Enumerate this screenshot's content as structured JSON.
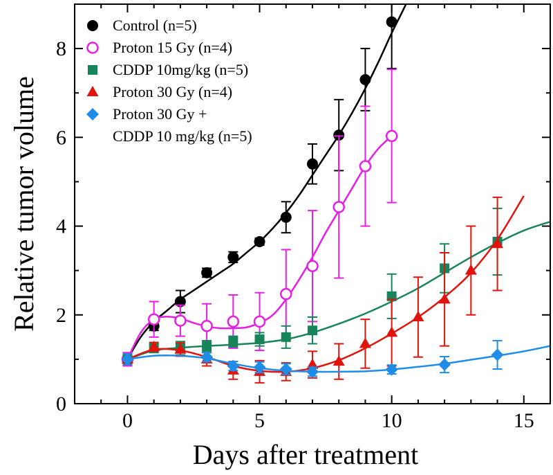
{
  "chart_data": {
    "type": "scatter",
    "title": "",
    "xlabel": "Days after treatment",
    "ylabel": "Relative tumor volume",
    "xlim": [
      -2,
      16
    ],
    "ylim": [
      0,
      9
    ],
    "xticks": [
      0,
      5,
      10,
      15
    ],
    "yticks": [
      0,
      2,
      4,
      6,
      8
    ],
    "grid": false,
    "legend_position": "top-left",
    "series": [
      {
        "name": "Control (n=5)",
        "name_lines": [
          "Control (n=5)"
        ],
        "color": "#000000",
        "marker": "circle-filled",
        "x": [
          0,
          1,
          2,
          3,
          4,
          5,
          6,
          7,
          8,
          9,
          10
        ],
        "y": [
          1.0,
          1.75,
          2.3,
          2.95,
          3.3,
          3.65,
          4.2,
          5.4,
          6.05,
          7.3,
          8.6
        ],
        "err": [
          0.05,
          0.1,
          0.25,
          0.1,
          0.12,
          0.08,
          0.35,
          0.45,
          0.8,
          0.7,
          1.05
        ],
        "fit_x": [
          0,
          0.5,
          1,
          1.5,
          2,
          2.5,
          3,
          3.5,
          4,
          4.5,
          5,
          5.5,
          6,
          6.5,
          7,
          7.5,
          8,
          8.5,
          9,
          9.5,
          10,
          10.5,
          11,
          11.5
        ],
        "fit_y": [
          1.0,
          1.5,
          1.85,
          2.1,
          2.35,
          2.55,
          2.75,
          2.95,
          3.15,
          3.4,
          3.65,
          3.95,
          4.3,
          4.7,
          5.15,
          5.6,
          6.05,
          6.55,
          7.1,
          7.7,
          8.35,
          8.95,
          9.6,
          10.2
        ]
      },
      {
        "name": "Proton 15 Gy (n=4)",
        "name_lines": [
          "Proton 15 Gy (n=4)"
        ],
        "color": "#e61ee6",
        "marker": "circle-open",
        "x": [
          0,
          1,
          2,
          3,
          4,
          5,
          6,
          7,
          8,
          9,
          10
        ],
        "y": [
          1.0,
          1.9,
          1.87,
          1.75,
          1.85,
          1.85,
          2.47,
          3.1,
          4.43,
          5.35,
          6.03
        ],
        "err": [
          0.15,
          0.4,
          0.35,
          0.5,
          0.6,
          0.65,
          1.0,
          1.25,
          1.6,
          1.35,
          1.5
        ],
        "fit_x": [
          0,
          0.5,
          1,
          1.5,
          2,
          2.5,
          3,
          3.5,
          4,
          4.5,
          5,
          5.5,
          6,
          6.5,
          7,
          7.5,
          8,
          8.5,
          9,
          9.5,
          10
        ],
        "fit_y": [
          1.0,
          1.6,
          1.9,
          1.96,
          1.92,
          1.82,
          1.74,
          1.7,
          1.7,
          1.72,
          1.82,
          2.0,
          2.35,
          2.8,
          3.3,
          3.85,
          4.35,
          4.85,
          5.35,
          5.75,
          6.03
        ]
      },
      {
        "name": "CDDP 10mg/kg (n=5)",
        "name_lines": [
          "CDDP 10mg/kg (n=5)"
        ],
        "color": "#17845a",
        "marker": "square-filled",
        "x": [
          0,
          1,
          2,
          3,
          4,
          5,
          6,
          7,
          10,
          12,
          14
        ],
        "y": [
          1.0,
          1.25,
          1.25,
          1.3,
          1.4,
          1.45,
          1.5,
          1.65,
          2.42,
          3.05,
          3.65
        ],
        "err": [
          0.1,
          0.1,
          0.15,
          0.12,
          0.12,
          0.15,
          0.25,
          0.3,
          0.5,
          0.55,
          0.75
        ],
        "fit_x": [
          0,
          1,
          2,
          3,
          4,
          5,
          6,
          7,
          8,
          9,
          10,
          11,
          12,
          13,
          14,
          15,
          16
        ],
        "fit_y": [
          1.0,
          1.2,
          1.26,
          1.3,
          1.33,
          1.37,
          1.45,
          1.6,
          1.8,
          2.03,
          2.3,
          2.6,
          2.95,
          3.3,
          3.62,
          3.9,
          4.1
        ]
      },
      {
        "name": "Proton 30 Gy (n=4)",
        "name_lines": [
          "Proton 30 Gy (n=4)"
        ],
        "color": "#e0140c",
        "marker": "triangle-filled",
        "x": [
          0,
          1,
          2,
          3,
          4,
          5,
          6,
          7,
          8,
          9,
          10,
          11,
          12,
          13,
          14
        ],
        "y": [
          1.0,
          1.28,
          1.22,
          1.0,
          0.75,
          0.72,
          0.72,
          0.88,
          0.95,
          1.35,
          1.6,
          1.95,
          2.35,
          3.0,
          3.6
        ],
        "err": [
          0.12,
          0.1,
          0.15,
          0.15,
          0.2,
          0.25,
          0.2,
          0.3,
          0.4,
          0.55,
          0.75,
          0.9,
          1.05,
          1.0,
          1.05
        ],
        "fit_x": [
          0,
          1,
          2,
          3,
          4,
          5,
          6,
          7,
          8,
          9,
          10,
          11,
          12,
          13,
          14,
          15
        ],
        "fit_y": [
          1.0,
          1.22,
          1.2,
          1.05,
          0.85,
          0.74,
          0.72,
          0.8,
          0.98,
          1.25,
          1.58,
          1.95,
          2.4,
          2.95,
          3.7,
          4.68
        ]
      },
      {
        "name": "Proton 30 Gy + CDDP 10 mg/kg (n=5)",
        "name_lines": [
          "Proton 30 Gy +",
          "CDDP 10 mg/kg (n=5)"
        ],
        "color": "#1f8de8",
        "marker": "diamond-filled",
        "x": [
          0,
          3,
          4,
          5,
          6,
          7,
          10,
          12,
          14
        ],
        "y": [
          1.0,
          1.05,
          0.85,
          0.82,
          0.78,
          0.72,
          0.77,
          0.88,
          1.1
        ],
        "err": [
          0.12,
          0.1,
          0.1,
          0.12,
          0.12,
          0.1,
          0.1,
          0.18,
          0.32
        ],
        "fit_x": [
          0,
          1,
          2,
          3,
          4,
          5,
          6,
          7,
          8,
          9,
          10,
          11,
          12,
          13,
          14,
          15,
          16
        ],
        "fit_y": [
          1.0,
          1.08,
          1.08,
          1.02,
          0.9,
          0.8,
          0.74,
          0.72,
          0.72,
          0.73,
          0.77,
          0.83,
          0.9,
          0.99,
          1.08,
          1.18,
          1.3
        ]
      }
    ]
  }
}
